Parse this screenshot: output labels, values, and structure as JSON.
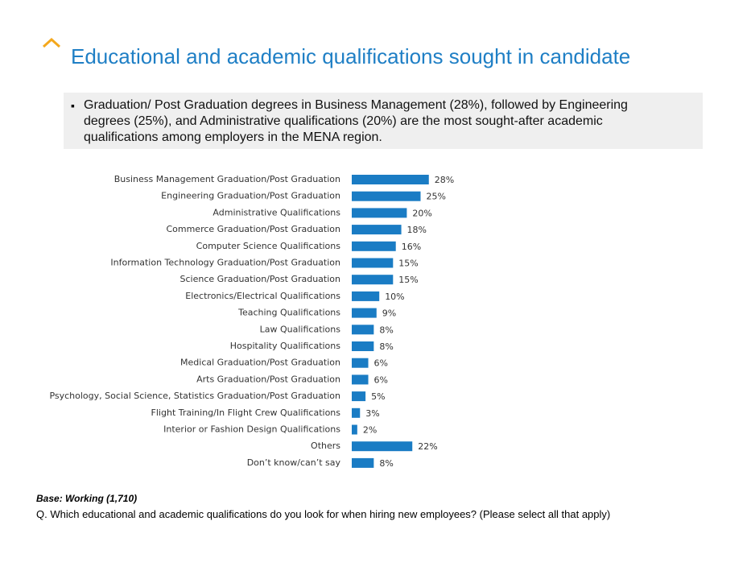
{
  "chart_data": {
    "type": "bar",
    "orientation": "horizontal",
    "title": "Educational and academic qualifications sought in candidate",
    "subtitle": "Graduation/ Post Graduation degrees in Business Management (28%), followed by Engineering degrees (25%), and Administrative qualifications (20%) are the most sought-after academic qualifications among employers in the MENA region.",
    "categories": [
      "Business Management Graduation/Post Graduation",
      "Engineering Graduation/Post Graduation",
      "Administrative Qualifications",
      "Commerce Graduation/Post Graduation",
      "Computer Science Qualifications",
      "Information Technology Graduation/Post Graduation",
      "Science Graduation/Post Graduation",
      "Electronics/Electrical Qualifications",
      "Teaching Qualifications",
      "Law Qualifications",
      "Hospitality Qualifications",
      "Medical Graduation/Post Graduation",
      "Arts Graduation/Post Graduation",
      "Psychology, Social Science, Statistics Graduation/Post Graduation",
      "Flight Training/In Flight Crew Qualifications",
      "Interior or Fashion Design Qualifications",
      "Others",
      "Don’t know/can’t say"
    ],
    "values": [
      28,
      25,
      20,
      18,
      16,
      15,
      15,
      10,
      9,
      8,
      8,
      6,
      6,
      5,
      3,
      2,
      22,
      8
    ],
    "value_labels": [
      "28%",
      "25%",
      "20%",
      "18%",
      "16%",
      "15%",
      "15%",
      "10%",
      "9%",
      "8%",
      "8%",
      "6%",
      "6%",
      "5%",
      "3%",
      "2%",
      "22%",
      "8%"
    ],
    "color": "#1a7cc4",
    "notes": [
      "Base: Working (1,710)",
      "Q. Which educational and academic qualifications do you look for when hiring new employees? (Please select all that apply)"
    ]
  }
}
